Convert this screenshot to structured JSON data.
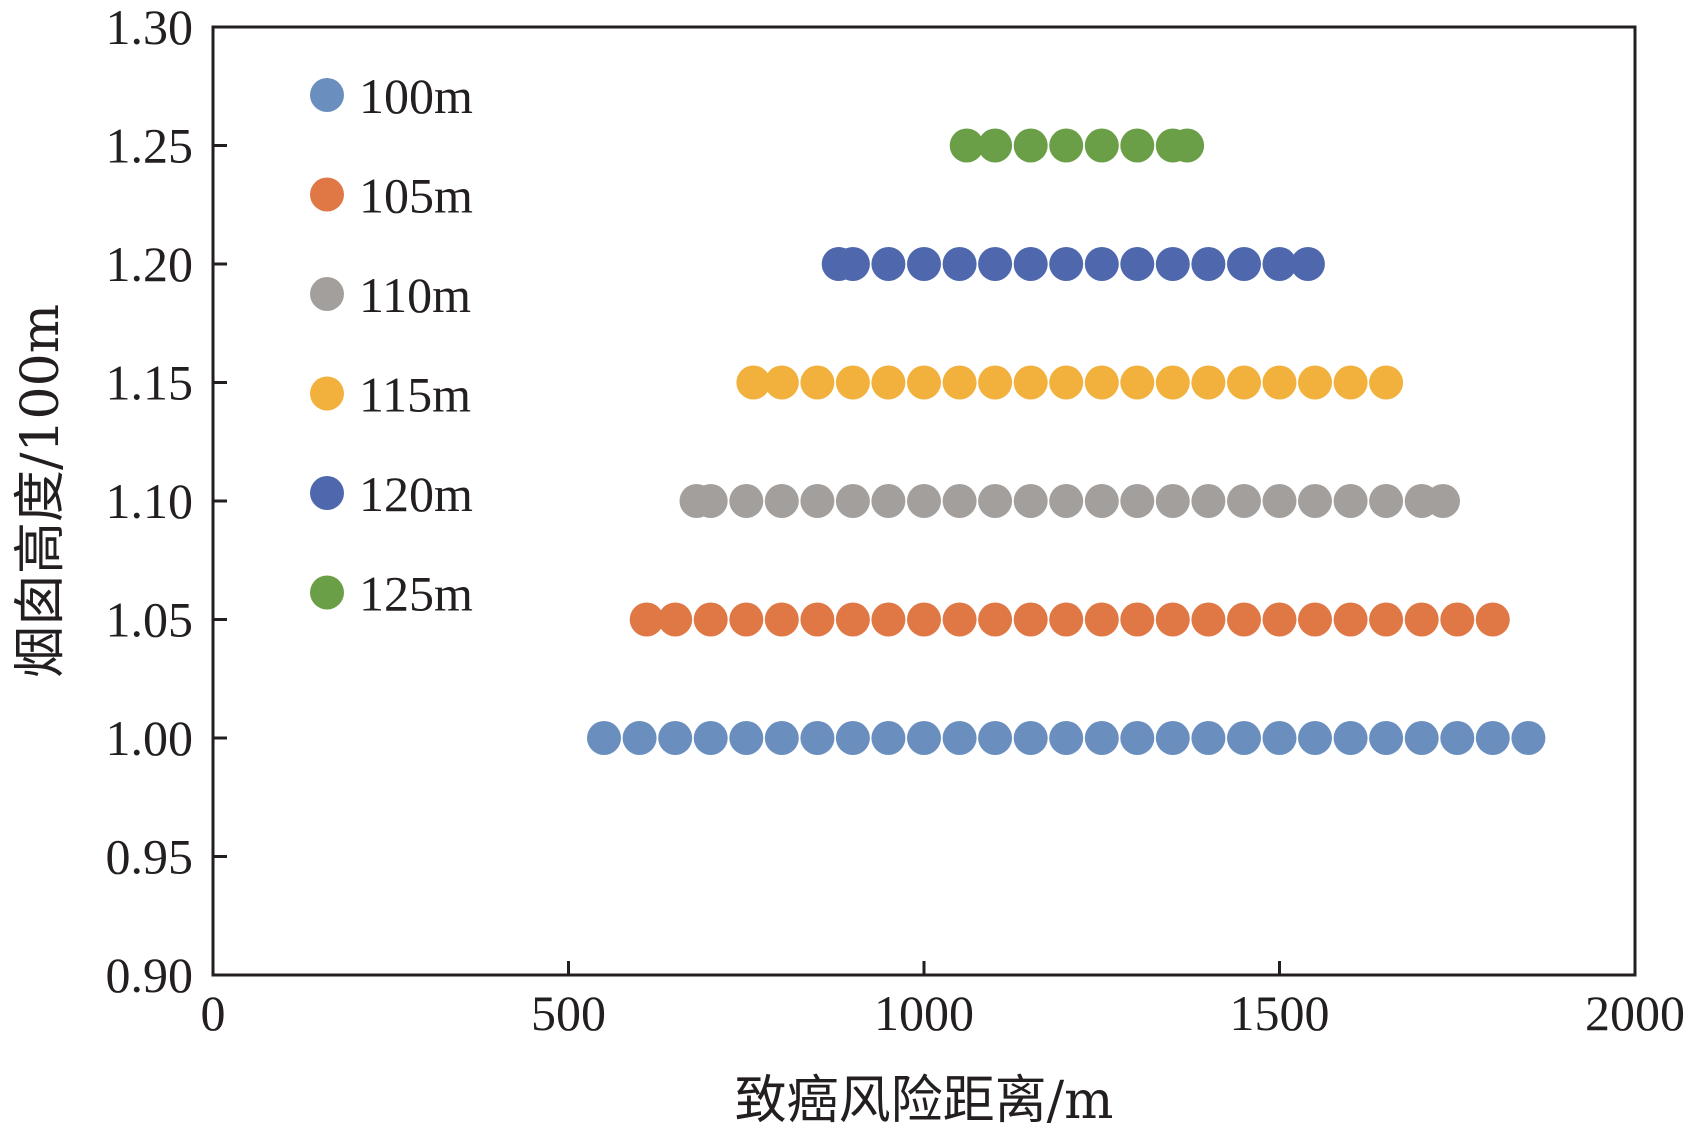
{
  "chart_data": {
    "type": "scatter",
    "title": "",
    "xlabel": "致癌风险距离/m",
    "ylabel": "烟囱高度/100m",
    "xlim": [
      0,
      2000
    ],
    "ylim": [
      0.9,
      1.3
    ],
    "xticks": [
      "0",
      "500",
      "1000",
      "1500",
      "2000"
    ],
    "yticks": [
      "0.90",
      "0.95",
      "1.00",
      "1.05",
      "1.10",
      "1.15",
      "1.20",
      "1.25",
      "1.30"
    ],
    "grid": false,
    "legend_position": "top-left",
    "series": [
      {
        "name": "100m",
        "color": "#6a8fbf",
        "y": 1.0,
        "x": [
          550,
          600,
          650,
          700,
          750,
          800,
          850,
          900,
          950,
          1000,
          1050,
          1100,
          1150,
          1200,
          1250,
          1300,
          1350,
          1400,
          1450,
          1500,
          1550,
          1600,
          1650,
          1700,
          1750,
          1800,
          1850
        ]
      },
      {
        "name": "105m",
        "color": "#e07845",
        "y": 1.05,
        "x": [
          610,
          650,
          700,
          750,
          800,
          850,
          900,
          950,
          1000,
          1050,
          1100,
          1150,
          1200,
          1250,
          1300,
          1350,
          1400,
          1450,
          1500,
          1550,
          1600,
          1650,
          1700,
          1750,
          1800
        ]
      },
      {
        "name": "110m",
        "color": "#a39f9c",
        "y": 1.1,
        "x": [
          680,
          700,
          750,
          800,
          850,
          900,
          950,
          1000,
          1050,
          1100,
          1150,
          1200,
          1250,
          1300,
          1350,
          1400,
          1450,
          1500,
          1550,
          1600,
          1650,
          1700,
          1730
        ]
      },
      {
        "name": "115m",
        "color": "#f2b03c",
        "y": 1.15,
        "x": [
          760,
          800,
          850,
          900,
          950,
          1000,
          1050,
          1100,
          1150,
          1200,
          1250,
          1300,
          1350,
          1400,
          1450,
          1500,
          1550,
          1600,
          1650
        ]
      },
      {
        "name": "120m",
        "color": "#4e67ad",
        "y": 1.2,
        "x": [
          880,
          900,
          950,
          1000,
          1050,
          1100,
          1150,
          1200,
          1250,
          1300,
          1350,
          1400,
          1450,
          1500,
          1540
        ]
      },
      {
        "name": "125m",
        "color": "#6a9e47",
        "y": 1.25,
        "x": [
          1060,
          1100,
          1150,
          1200,
          1250,
          1300,
          1350,
          1370
        ]
      }
    ]
  }
}
